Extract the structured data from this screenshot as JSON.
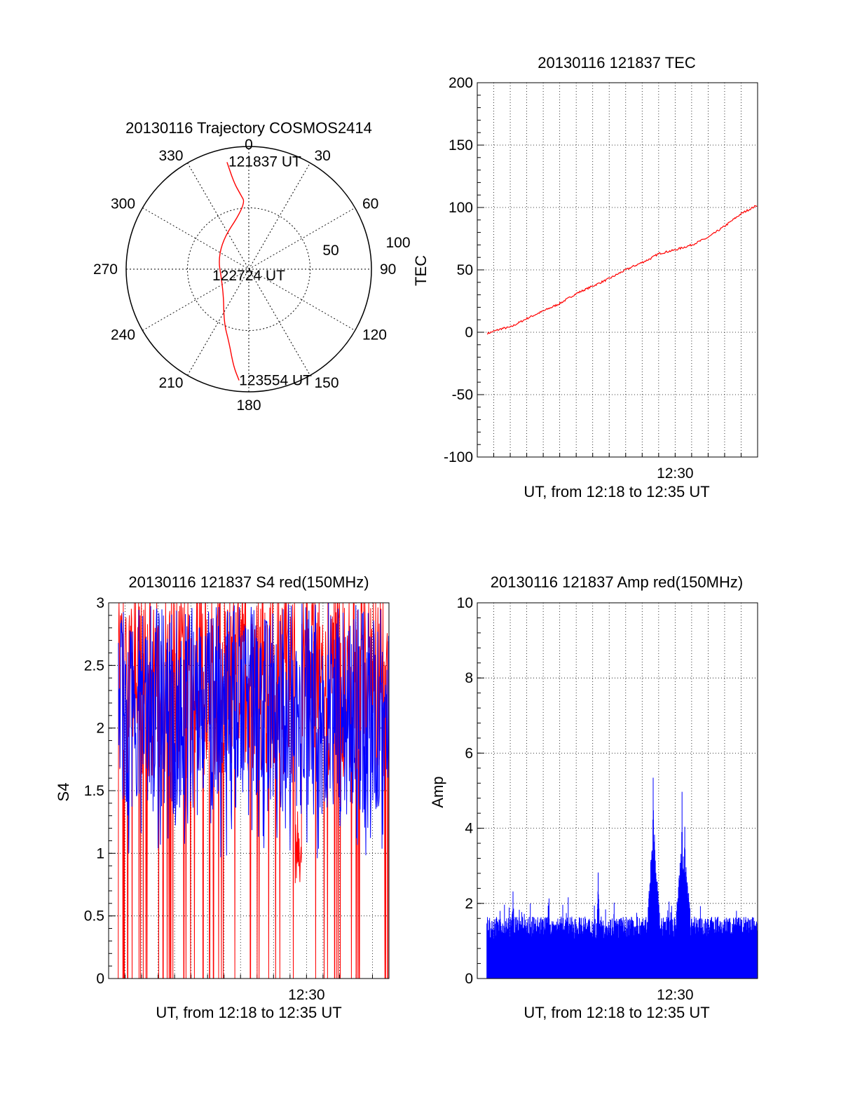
{
  "colors": {
    "red": "#ff0000",
    "blue": "#0000ff",
    "axis": "#000000",
    "grid": "#000000"
  },
  "chart_data": [
    {
      "id": "trajectory",
      "type": "polar",
      "title": "20130116 Trajectory COSMOS2414",
      "azimuth_labels": [
        "0",
        "30",
        "60",
        "90",
        "120",
        "150",
        "180",
        "210",
        "240",
        "270",
        "300",
        "330"
      ],
      "radius_labels": [
        "50",
        "100"
      ],
      "rmax": 100,
      "grid": true,
      "track_color": "#ff0000",
      "track": [
        {
          "az": -11.5,
          "r": 89,
          "label": "121837 UT"
        },
        {
          "az": -9.8,
          "r": 72
        },
        {
          "az": -6.6,
          "r": 62
        },
        {
          "az": -2.4,
          "r": 53
        },
        {
          "az": 302,
          "r": 31
        },
        {
          "az": 230,
          "r": 27
        },
        {
          "az": 205,
          "r": 48
        },
        {
          "az": 195,
          "r": 62
        },
        {
          "az": 189,
          "r": 80
        },
        {
          "az": 185,
          "r": 91
        }
      ],
      "annotations": [
        {
          "text": "121837 UT"
        },
        {
          "text": "122724 UT"
        },
        {
          "text": "123554 UT"
        }
      ]
    },
    {
      "id": "tec",
      "type": "line",
      "title": "20130116 121837 TEC",
      "xlabel": "UT, from 12:18 to 12:35 UT",
      "ylabel": "TEC",
      "x_range": [
        "12:18:00",
        "12:35:00"
      ],
      "x_ticks": [
        {
          "t": "12:30:00",
          "label": "12:30"
        }
      ],
      "x_grid_minutes": 1,
      "y_range": [
        -100,
        200
      ],
      "y_ticks": [
        200,
        150,
        100,
        50,
        0,
        -50,
        -100
      ],
      "grid": true,
      "series": [
        {
          "color": "#ff0000",
          "x": [
            "12:18:37",
            "12:19:30",
            "12:20:00",
            "12:21:00",
            "12:22:00",
            "12:23:00",
            "12:24:00",
            "12:25:00",
            "12:26:00",
            "12:27:00",
            "12:28:00",
            "12:28:30",
            "12:29:00",
            "12:30:00",
            "12:31:00",
            "12:32:00",
            "12:33:00",
            "12:34:00",
            "12:35:00"
          ],
          "y": [
            -1,
            3,
            4,
            11,
            17,
            23,
            31,
            37,
            43,
            50,
            56,
            59,
            63,
            66,
            70,
            76,
            85,
            95,
            102
          ]
        }
      ]
    },
    {
      "id": "s4",
      "type": "line",
      "title": "20130116 121837 S4 red(150MHz)",
      "xlabel": "UT, from 12:18 to 12:35 UT",
      "ylabel": "S4",
      "x_range": [
        "12:18:00",
        "12:35:00"
      ],
      "x_ticks": [
        {
          "t": "12:30:00",
          "label": "12:30"
        }
      ],
      "y_range": [
        0,
        3
      ],
      "y_ticks": [
        3,
        2.5,
        2,
        1.5,
        1,
        0.5,
        0
      ],
      "grid": true,
      "series": [
        {
          "color": "#ff0000",
          "note": "dense noisy S4 trace, mostly 1.5-3 with dropouts to 0",
          "x": [
            "12:18:00",
            "12:35:00"
          ],
          "y": [
            2.2,
            2.2
          ],
          "min": 0,
          "max": 3,
          "dip": {
            "t": "12:29:30",
            "y": 0.75
          }
        },
        {
          "color": "#0000ff",
          "x": [
            "12:18:00",
            "12:35:00"
          ],
          "y": [
            2.0,
            2.0
          ],
          "min": 0.9,
          "max": 3
        }
      ]
    },
    {
      "id": "amp",
      "type": "area",
      "title": "20130116 121837 Amp red(150MHz)",
      "xlabel": "UT, from 12:18 to 12:35 UT",
      "ylabel": "Amp",
      "x_range": [
        "12:18:00",
        "12:35:00"
      ],
      "x_ticks": [
        {
          "t": "12:30:00",
          "label": "12:30"
        }
      ],
      "y_range": [
        0,
        10
      ],
      "y_ticks": [
        10,
        8,
        6,
        4,
        2,
        0
      ],
      "grid": true,
      "series": [
        {
          "color": "#0000ff",
          "base_level": 1.3,
          "noise_max": 0.4,
          "spikes": [
            {
              "t": "12:20:10",
              "y": 2.2
            },
            {
              "t": "12:22:20",
              "y": 2.2
            },
            {
              "t": "12:25:20",
              "y": 2.8
            },
            {
              "t": "12:28:40",
              "y": 5.4
            },
            {
              "t": "12:28:45",
              "y": 4.0
            },
            {
              "t": "12:30:25",
              "y": 4.8
            },
            {
              "t": "12:30:35",
              "y": 4.2
            }
          ]
        }
      ]
    }
  ]
}
